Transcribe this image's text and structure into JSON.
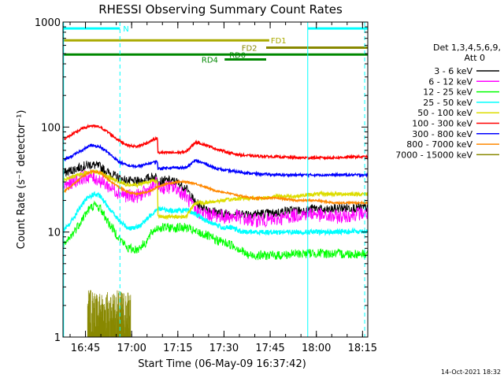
{
  "chart_data": {
    "type": "line",
    "title": "RHESSI Observing Summary Count Rates",
    "xlabel": "Start Time (06-May-09 16:37:42)",
    "ylabel": "Count Rate (s⁻¹ detector⁻¹)",
    "ylog": true,
    "ylim": [
      1,
      1000
    ],
    "xlim_minutes": [
      0,
      99
    ],
    "x_ticks": [
      {
        "label": "16:45",
        "t": 7.3
      },
      {
        "label": "17:00",
        "t": 22.3
      },
      {
        "label": "17:15",
        "t": 37.3
      },
      {
        "label": "17:30",
        "t": 52.3
      },
      {
        "label": "17:45",
        "t": 67.3
      },
      {
        "label": "18:00",
        "t": 82.3
      },
      {
        "label": "18:15",
        "t": 97.3
      }
    ],
    "y_ticks": [
      {
        "label": "1",
        "v": 1
      },
      {
        "label": "10",
        "v": 10
      },
      {
        "label": "100",
        "v": 100
      },
      {
        "label": "1000",
        "v": 1000
      }
    ],
    "legend_header": [
      "Det 1,3,4,5,6,9,",
      "Att 0"
    ],
    "legend_position": "right",
    "series": [
      {
        "name": "3 - 6 keV",
        "color": "#000000",
        "noise": 0.08,
        "points": [
          [
            0,
            36
          ],
          [
            3,
            39
          ],
          [
            6,
            42
          ],
          [
            9,
            44
          ],
          [
            12,
            42
          ],
          [
            14,
            38
          ],
          [
            17,
            34
          ],
          [
            20,
            31
          ],
          [
            23,
            30
          ],
          [
            26,
            31
          ],
          [
            28,
            33
          ],
          [
            30.7,
            34
          ],
          [
            30.8,
            30
          ],
          [
            34,
            31
          ],
          [
            37,
            30
          ],
          [
            40,
            26
          ],
          [
            43,
            19
          ],
          [
            46,
            17
          ],
          [
            48,
            16
          ],
          [
            52,
            15
          ],
          [
            55,
            15
          ],
          [
            60,
            15
          ],
          [
            65,
            15
          ],
          [
            68,
            15
          ],
          [
            73,
            16
          ],
          [
            79,
            16
          ],
          [
            82,
            17
          ],
          [
            85,
            16
          ],
          [
            90,
            17
          ],
          [
            96,
            17
          ],
          [
            99,
            17
          ]
        ]
      },
      {
        "name": "6 - 12 keV",
        "color": "#ff00ff",
        "noise": 0.12,
        "points": [
          [
            0,
            27
          ],
          [
            3,
            30
          ],
          [
            6,
            33
          ],
          [
            9,
            34
          ],
          [
            12,
            31
          ],
          [
            15,
            27
          ],
          [
            18,
            24
          ],
          [
            21,
            22
          ],
          [
            24,
            22
          ],
          [
            27,
            24
          ],
          [
            29,
            27
          ],
          [
            30.7,
            29
          ],
          [
            30.8,
            26
          ],
          [
            34,
            27
          ],
          [
            37,
            26
          ],
          [
            40,
            22
          ],
          [
            43,
            16
          ],
          [
            46,
            15
          ],
          [
            52,
            14
          ],
          [
            57,
            14
          ],
          [
            60,
            13
          ],
          [
            65,
            13
          ],
          [
            68,
            13
          ],
          [
            73,
            14
          ],
          [
            79,
            15
          ],
          [
            82,
            15
          ],
          [
            85,
            14
          ],
          [
            90,
            14
          ],
          [
            96,
            15
          ],
          [
            99,
            15
          ]
        ]
      },
      {
        "name": "12 - 25 keV",
        "color": "#00ff00",
        "noise": 0.08,
        "points": [
          [
            0,
            7
          ],
          [
            3,
            9.5
          ],
          [
            6,
            13
          ],
          [
            8,
            16
          ],
          [
            10,
            18
          ],
          [
            12,
            17
          ],
          [
            15,
            12
          ],
          [
            18,
            9
          ],
          [
            21,
            7
          ],
          [
            24,
            6.8
          ],
          [
            27,
            8
          ],
          [
            29,
            10
          ],
          [
            30.7,
            11
          ],
          [
            34,
            11
          ],
          [
            37,
            11
          ],
          [
            40,
            11
          ],
          [
            43,
            10
          ],
          [
            46,
            9.5
          ],
          [
            49,
            8.5
          ],
          [
            52,
            8
          ],
          [
            55,
            7.5
          ],
          [
            57,
            7
          ],
          [
            60,
            6
          ],
          [
            64,
            6
          ],
          [
            70,
            6
          ],
          [
            76,
            6.2
          ],
          [
            82,
            6.3
          ],
          [
            88,
            6.2
          ],
          [
            94,
            6.2
          ],
          [
            99,
            6.2
          ]
        ]
      },
      {
        "name": "25 - 50 keV",
        "color": "#00ffff",
        "noise": 0.04,
        "points": [
          [
            0,
            10
          ],
          [
            3,
            13
          ],
          [
            6,
            18
          ],
          [
            8,
            21
          ],
          [
            10,
            23
          ],
          [
            12,
            22
          ],
          [
            15,
            17
          ],
          [
            18,
            13
          ],
          [
            21,
            11
          ],
          [
            24,
            11
          ],
          [
            27,
            13
          ],
          [
            29,
            15
          ],
          [
            30.7,
            17
          ],
          [
            34,
            16
          ],
          [
            37,
            16
          ],
          [
            40,
            16
          ],
          [
            43,
            15
          ],
          [
            46,
            13
          ],
          [
            49,
            12
          ],
          [
            52,
            11
          ],
          [
            55,
            11
          ],
          [
            58,
            10
          ],
          [
            62,
            10
          ],
          [
            70,
            10
          ],
          [
            76,
            10
          ],
          [
            82,
            10
          ],
          [
            88,
            10
          ],
          [
            94,
            10.2
          ],
          [
            99,
            10.2
          ]
        ]
      },
      {
        "name": "50 - 100 keV",
        "color": "#dddd00",
        "noise": 0.03,
        "points": [
          [
            0,
            31
          ],
          [
            6,
            36
          ],
          [
            10,
            38
          ],
          [
            13,
            36
          ],
          [
            17,
            31
          ],
          [
            21,
            28
          ],
          [
            24,
            28
          ],
          [
            27,
            30
          ],
          [
            30.7,
            31
          ],
          [
            30.8,
            14
          ],
          [
            34,
            14
          ],
          [
            40,
            14
          ],
          [
            43,
            19
          ],
          [
            46,
            19
          ],
          [
            52,
            20
          ],
          [
            58,
            21
          ],
          [
            64,
            21
          ],
          [
            70,
            22
          ],
          [
            76,
            22
          ],
          [
            82,
            23
          ],
          [
            88,
            23
          ],
          [
            99,
            23
          ]
        ]
      },
      {
        "name": "100 - 300 keV",
        "color": "#ff0000",
        "noise": 0.02,
        "points": [
          [
            0,
            76
          ],
          [
            3,
            85
          ],
          [
            6,
            96
          ],
          [
            9,
            103
          ],
          [
            12,
            100
          ],
          [
            15,
            88
          ],
          [
            18,
            75
          ],
          [
            21,
            67
          ],
          [
            24,
            65
          ],
          [
            27,
            70
          ],
          [
            29,
            75
          ],
          [
            30.7,
            78
          ],
          [
            30.8,
            57
          ],
          [
            34,
            57
          ],
          [
            37,
            57
          ],
          [
            40,
            58
          ],
          [
            43,
            72
          ],
          [
            46,
            68
          ],
          [
            49,
            63
          ],
          [
            52,
            59
          ],
          [
            55,
            56
          ],
          [
            58,
            54
          ],
          [
            62,
            53
          ],
          [
            70,
            52
          ],
          [
            76,
            51
          ],
          [
            82,
            51
          ],
          [
            88,
            51
          ],
          [
            94,
            52
          ],
          [
            99,
            52
          ]
        ]
      },
      {
        "name": "300 - 800 keV",
        "color": "#0000ff",
        "noise": 0.02,
        "points": [
          [
            0,
            48
          ],
          [
            3,
            53
          ],
          [
            6,
            60
          ],
          [
            9,
            67
          ],
          [
            12,
            65
          ],
          [
            15,
            56
          ],
          [
            18,
            47
          ],
          [
            21,
            43
          ],
          [
            24,
            42
          ],
          [
            27,
            44
          ],
          [
            29,
            46
          ],
          [
            30.7,
            47
          ],
          [
            30.8,
            40
          ],
          [
            34,
            41
          ],
          [
            37,
            41
          ],
          [
            40,
            41
          ],
          [
            43,
            48
          ],
          [
            46,
            45
          ],
          [
            49,
            41
          ],
          [
            52,
            39
          ],
          [
            55,
            38
          ],
          [
            58,
            37
          ],
          [
            62,
            36
          ],
          [
            70,
            35
          ],
          [
            76,
            35
          ],
          [
            82,
            35
          ],
          [
            88,
            35
          ],
          [
            94,
            35
          ],
          [
            99,
            35
          ]
        ]
      },
      {
        "name": "800 - 7000 keV",
        "color": "#ff8800",
        "noise": 0.015,
        "points": [
          [
            0,
            24
          ],
          [
            3,
            28
          ],
          [
            6,
            33
          ],
          [
            9,
            38
          ],
          [
            12,
            37
          ],
          [
            15,
            31
          ],
          [
            18,
            27
          ],
          [
            21,
            24
          ],
          [
            24,
            23
          ],
          [
            27,
            24
          ],
          [
            29,
            25
          ],
          [
            30.7,
            27
          ],
          [
            34,
            29
          ],
          [
            37,
            30
          ],
          [
            40,
            30
          ],
          [
            43,
            29
          ],
          [
            46,
            27
          ],
          [
            49,
            25
          ],
          [
            52,
            24
          ],
          [
            55,
            23
          ],
          [
            58,
            22
          ],
          [
            62,
            21
          ],
          [
            70,
            21
          ],
          [
            76,
            20
          ],
          [
            82,
            20
          ],
          [
            88,
            19
          ],
          [
            94,
            19
          ],
          [
            99,
            19
          ]
        ]
      },
      {
        "name": "7000 - 15000 keV",
        "color": "#888800",
        "noise": 0,
        "points": []
      }
    ],
    "annotations": {
      "spike_band": {
        "t_start": 8,
        "t_end": 22,
        "min": 1,
        "max": 2.8,
        "color": "#888800"
      },
      "state_bars": [
        {
          "label": "N",
          "color": "#00ffff",
          "level": 870,
          "segments": [
            [
              0,
              18.5
            ],
            [
              79.5,
              99
            ]
          ],
          "label_t": 19.5
        },
        {
          "label": "FD1",
          "color": "#aaaa00",
          "level": 670,
          "segments": [
            [
              0,
              67
            ]
          ],
          "label_t": 67.5
        },
        {
          "label": "FD2",
          "color": "#888800",
          "level": 570,
          "segments": [
            [
              66,
              99
            ]
          ],
          "label_t": 58
        },
        {
          "label": "RD0",
          "color": "#008800",
          "level": 490,
          "segments": [
            [
              0,
              99
            ]
          ],
          "label_t": 54
        },
        {
          "label": "RD4",
          "color": "#008800",
          "level": 440,
          "segments": [
            [
              52.5,
              66
            ]
          ],
          "label_t": 45
        }
      ],
      "vlines": [
        {
          "t": 0.2,
          "color": "#00ffff",
          "dashed": false
        },
        {
          "t": 18.5,
          "color": "#00ffff",
          "dashed": true
        },
        {
          "t": 79.5,
          "color": "#00ffff",
          "dashed": false
        },
        {
          "t": 98,
          "color": "#00ffff",
          "dashed": true
        }
      ]
    }
  },
  "footer_date": "14-Oct-2021 18:32",
  "colors": {
    "background": "#ffffff",
    "axis": "#000000"
  }
}
